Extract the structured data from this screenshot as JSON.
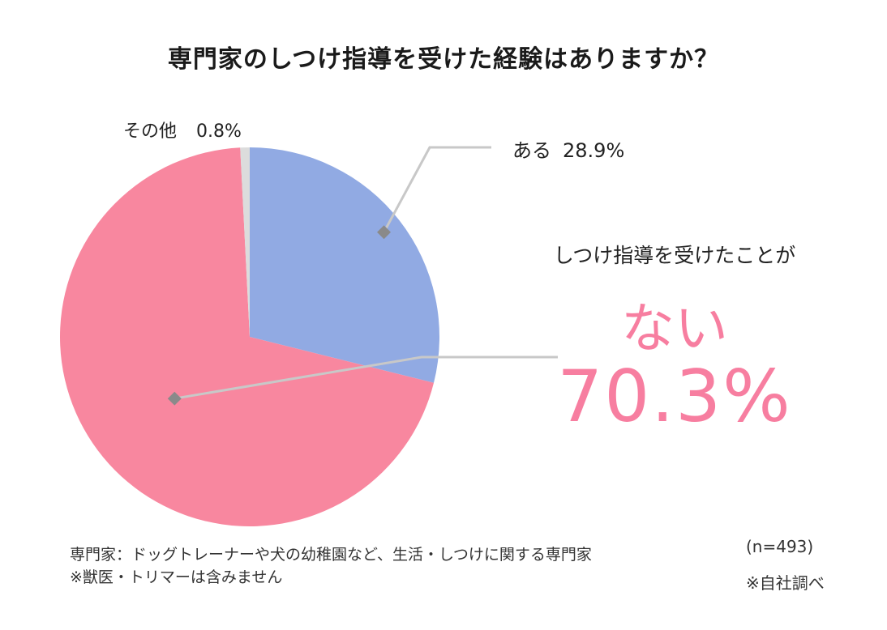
{
  "chart_data": {
    "type": "pie",
    "title": "専門家のしつけ指導を受けた経験はありますか？",
    "slices": [
      {
        "label": "ある",
        "value": 28.9,
        "display": "28.9%",
        "color": "#91aae3"
      },
      {
        "label": "",
        "value": 70.3,
        "display": "70.3%",
        "color": "#f8879f"
      },
      {
        "label": "その他",
        "value": 0.8,
        "display": "0.8%",
        "color": "#dcdcdc"
      }
    ],
    "start_angle_deg": 0,
    "direction": "clockwise",
    "callout": {
      "sub": "しつけ指導を受けたことが",
      "word": "ない",
      "value": "70.3%"
    }
  },
  "footnotes": {
    "line1": "専門家：ドッグトレーナーや犬の幼稚園など、生活・しつけに関する専門家",
    "line2": "※獣医・トリマーは含みません"
  },
  "sample_size": "(n=493)",
  "source": "※自社調べ",
  "colors": {
    "accent": "#f77ea0",
    "leader_line": "#c8c8c8",
    "marker": "#8a8a8a"
  }
}
